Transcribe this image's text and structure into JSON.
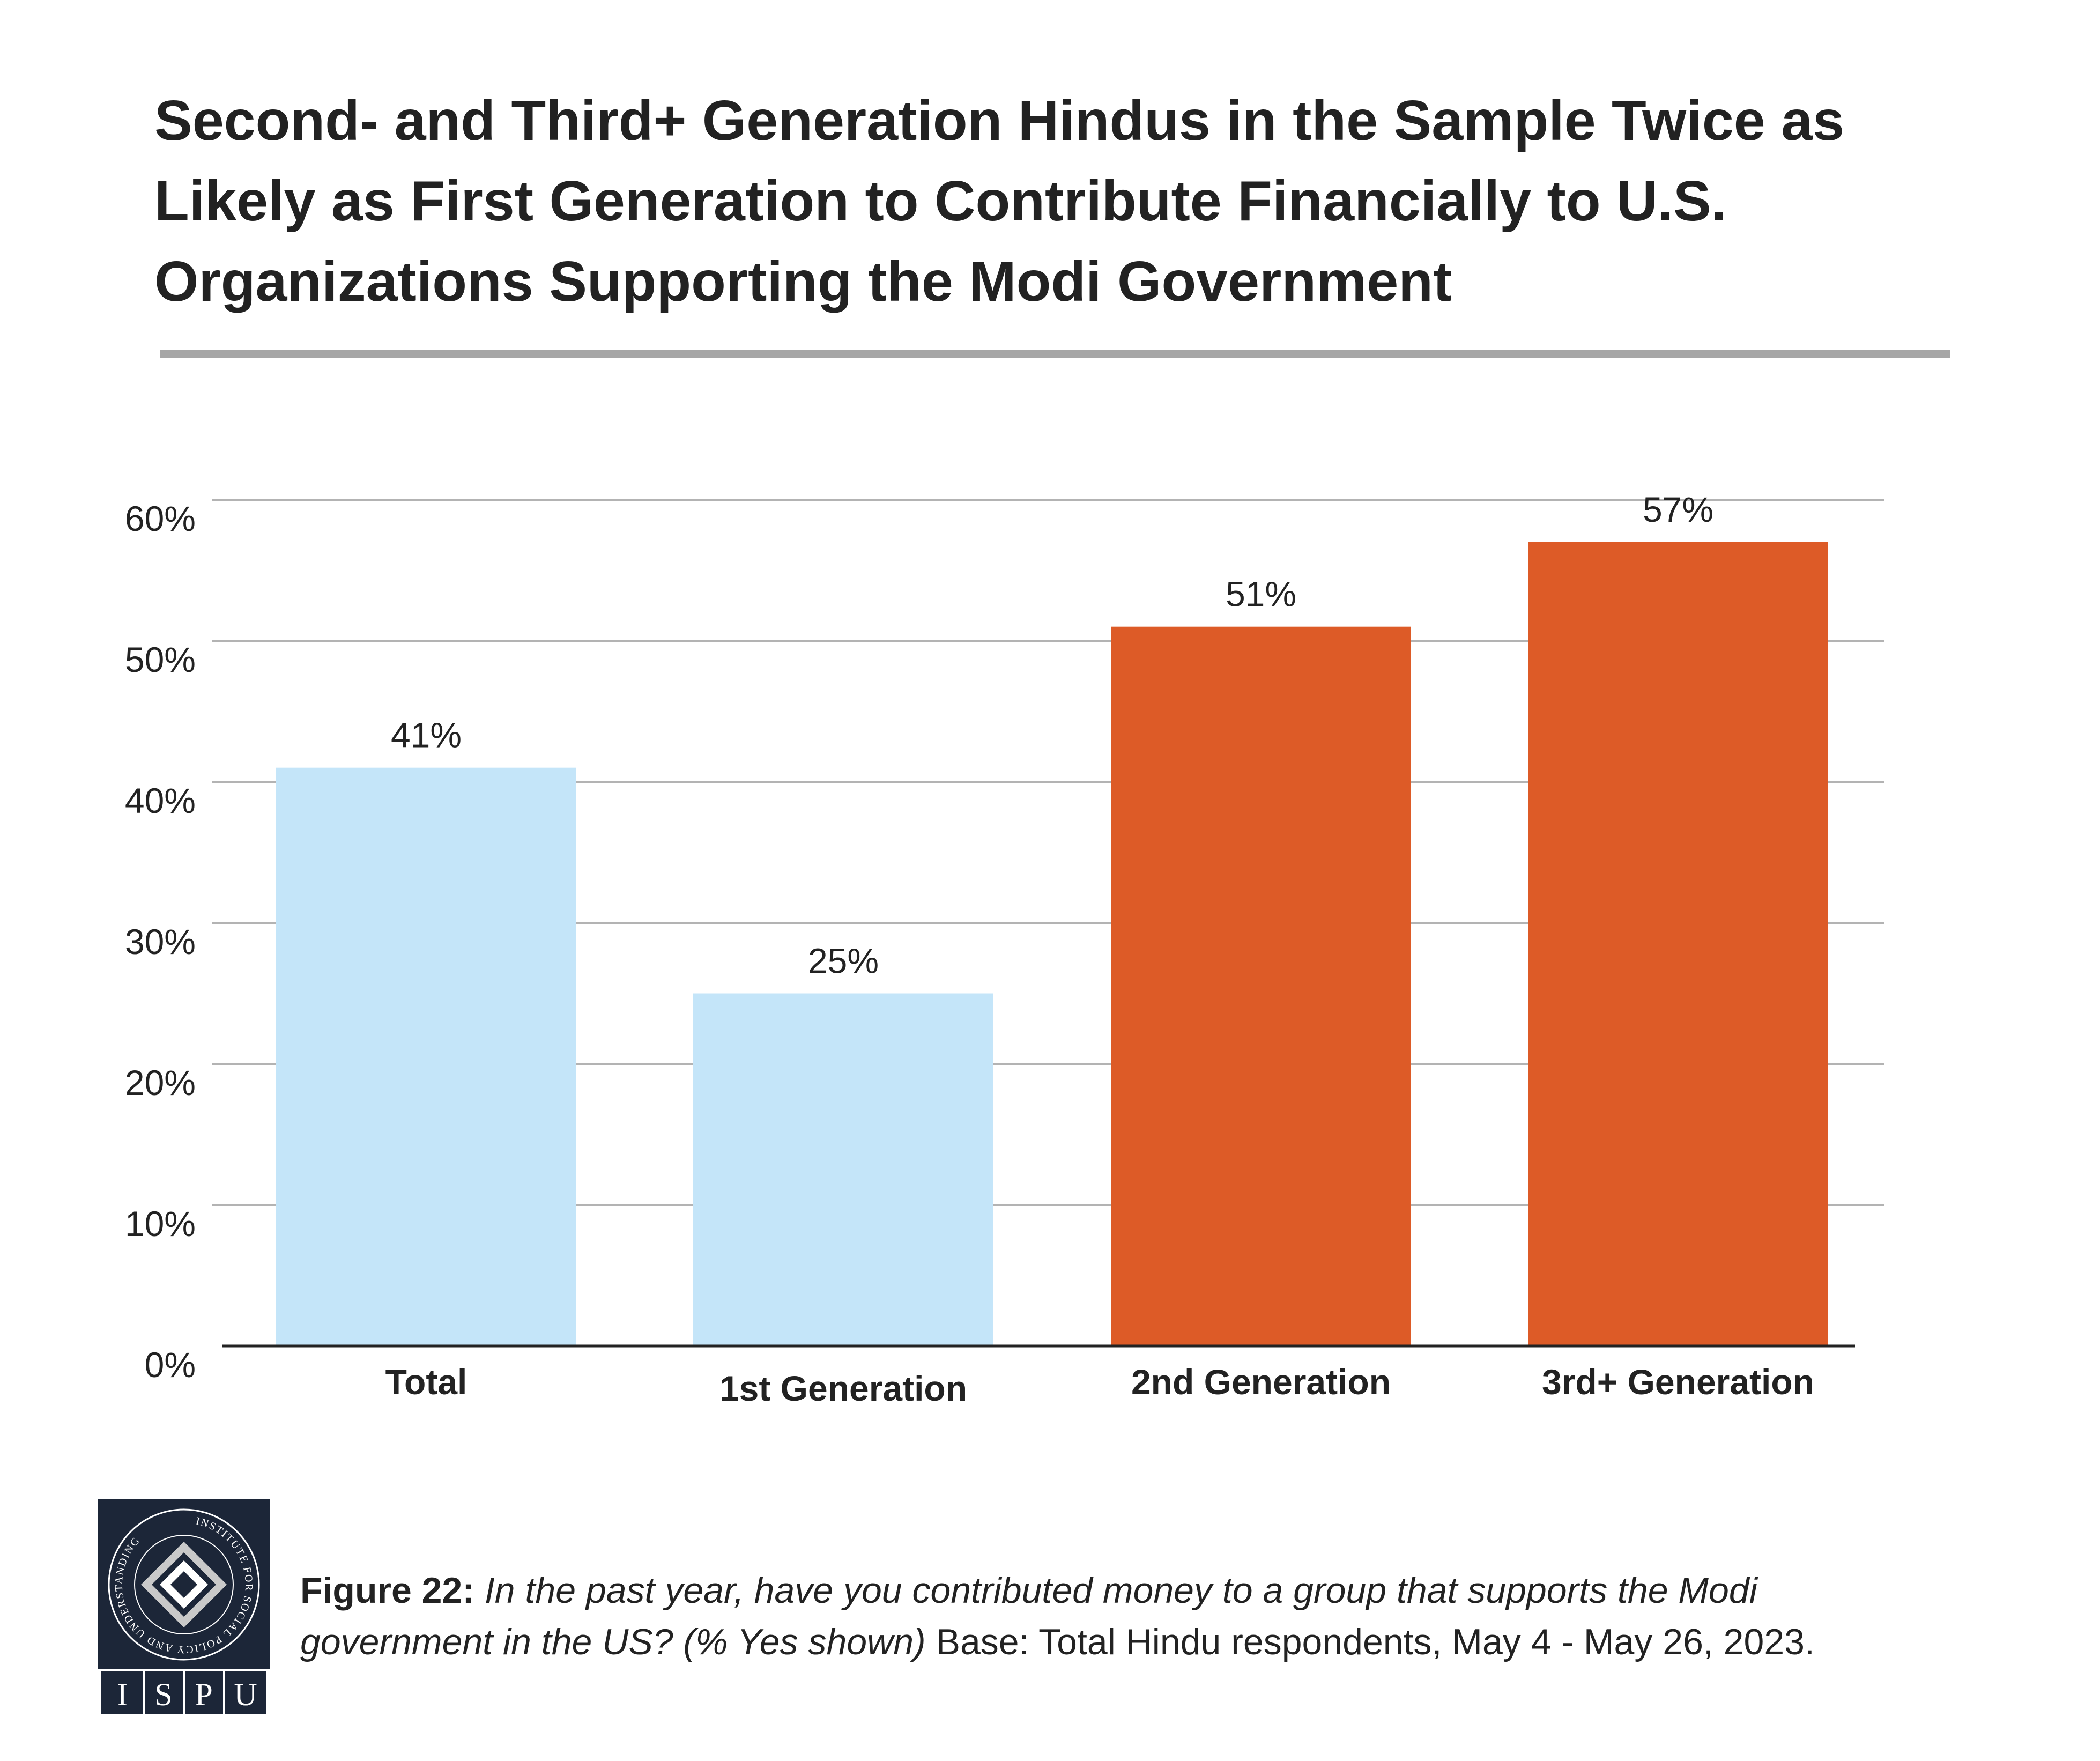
{
  "title": "Second- and Third+ Generation Hindus in the Sample Twice as Likely as First Generation to Contribute Financially to U.S. Organizations Supporting the Modi Government",
  "chart_data": {
    "type": "bar",
    "categories": [
      "Total",
      "1st Generation",
      "2nd Generation",
      "3rd+ Generation"
    ],
    "values": [
      41,
      25,
      51,
      57
    ],
    "data_labels": [
      "41%",
      "25%",
      "51%",
      "57%"
    ],
    "bar_colors": [
      "#c4e5f9",
      "#c4e5f9",
      "#dd5b27",
      "#dd5b27"
    ],
    "y_ticks": [
      0,
      10,
      20,
      30,
      40,
      50,
      60
    ],
    "y_tick_labels": [
      "0%",
      "10%",
      "20%",
      "30%",
      "40%",
      "50%",
      "60%"
    ],
    "ylim": [
      0,
      60
    ],
    "grid": true,
    "legend": "none",
    "xlabel": "",
    "ylabel": ""
  },
  "caption": {
    "figure_label": "Figure 22:",
    "question": "In the past year, have you contributed money to a group that supports the Modi government in the US? (% Yes shown)",
    "base": "Base: Total Hindu respondents, May 4 - May 26, 2023."
  },
  "logo": {
    "ring_text": "INSTITUTE FOR SOCIAL POLICY AND UNDERSTANDING",
    "letters": [
      "I",
      "S",
      "P",
      "U"
    ]
  },
  "colors": {
    "title_text": "#222222",
    "rule": "#a6a6a6",
    "grid": "#b3b3b3",
    "axis": "#222222",
    "logo_bg": "#1c2638"
  }
}
